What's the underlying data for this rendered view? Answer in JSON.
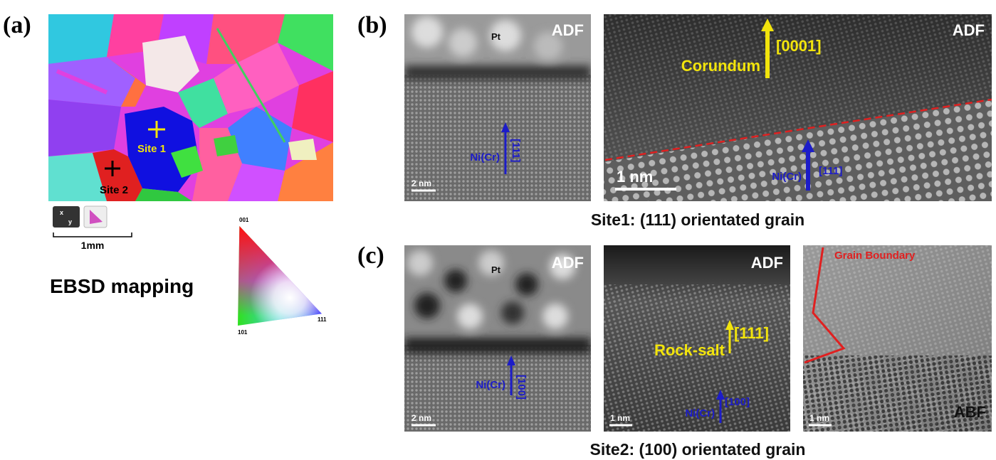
{
  "panel_a": {
    "label": "(a)",
    "site_1": "Site 1",
    "site_2": "Site 2",
    "axis_x": "x",
    "axis_y": "y",
    "scale_bar": "1mm",
    "title": "EBSD mapping",
    "ipf_labels": [
      "001",
      "101",
      "111"
    ]
  },
  "panel_b": {
    "label": "(b)",
    "images": [
      {
        "detector": "ADF",
        "layer": "Pt",
        "phase": "Ni(Cr)",
        "direction": "[111]",
        "scale_bar": "2 nm"
      },
      {
        "detector": "ADF",
        "oxide": "Corundum",
        "oxide_direction": "[0001]",
        "phase": "Ni(Cr)",
        "direction": "[111]",
        "scale_bar": "1 nm"
      }
    ],
    "caption": "Site1: (111) orientated grain"
  },
  "panel_c": {
    "label": "(c)",
    "images": [
      {
        "detector": "ADF",
        "layer": "Pt",
        "phase": "Ni(Cr)",
        "direction": "[100]",
        "scale_bar": "2 nm"
      },
      {
        "detector": "ADF",
        "oxide": "Rock-salt",
        "oxide_direction": "[111]",
        "phase": "Ni(Cr)",
        "direction": "[100]",
        "scale_bar": "1 nm"
      },
      {
        "annotation": "Grain Boundary",
        "scale_bar": "1 nm",
        "detector": "ABF"
      }
    ],
    "caption": "Site2: (100) orientated grain"
  }
}
